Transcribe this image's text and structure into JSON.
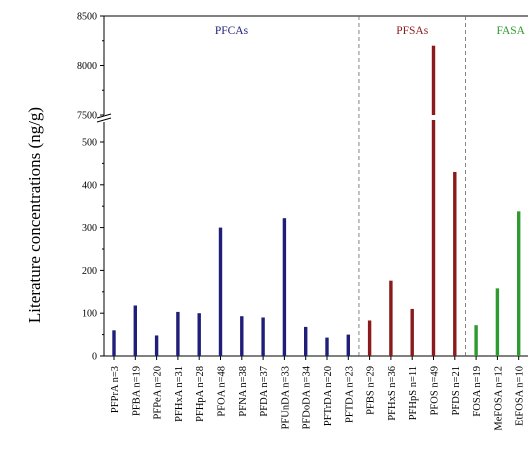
{
  "chart_data": {
    "type": "bar",
    "ylabel": "Literature concentrations (ng/g)",
    "axis_break": {
      "lower_range": [
        0,
        500
      ],
      "upper_range": [
        7500,
        8500
      ]
    },
    "lower_yticks": [
      0,
      100,
      200,
      300,
      400,
      500
    ],
    "upper_yticks": [
      7500,
      8000,
      8500
    ],
    "categories": [
      "PFPrA n=3",
      "PFBA n=19",
      "PFPeA n=20",
      "PFHxA n=31",
      "PFHpA n=28",
      "PFOA n=48",
      "PFNA n=38",
      "PFDA n=37",
      "PFUnDA n=33",
      "PFDoDA n=34",
      "PFTrDA n=20",
      "PFTDA n=23",
      "PFBS n=29",
      "PFHxS n=36",
      "PFHpS n=11",
      "PFOS n=49",
      "PFDS n=21",
      "FOSA n=19",
      "MeFOSA n=12",
      "EtFOSA n=10"
    ],
    "values": [
      60,
      118,
      48,
      103,
      100,
      300,
      93,
      90,
      322,
      68,
      43,
      50,
      83,
      176,
      110,
      8200,
      430,
      72,
      158,
      338
    ],
    "groups": [
      {
        "name": "PFCAs",
        "color": "#1f1f7a",
        "start": 0,
        "end": 11
      },
      {
        "name": "PFSAs",
        "color": "#8b1a1a",
        "start": 12,
        "end": 16
      },
      {
        "name": "FASA",
        "color": "#2e9b2e",
        "start": 17,
        "end": 19
      }
    ],
    "grid": false
  }
}
